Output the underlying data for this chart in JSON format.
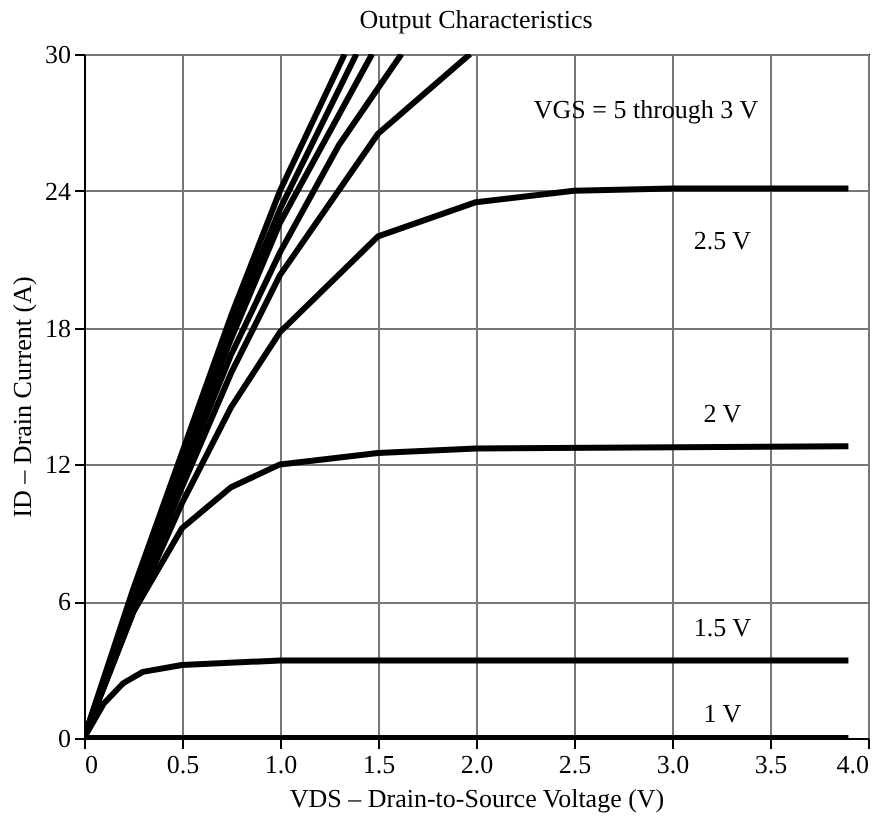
{
  "chart_data": {
    "type": "line",
    "title": "Output Characteristics",
    "xlabel": "VDS – Drain-to-Source Voltage (V)",
    "ylabel": "ID – Drain Current (A)",
    "xlim": [
      0,
      4
    ],
    "ylim": [
      0,
      30
    ],
    "xticks": [
      0,
      0.5,
      {
        "value": 1,
        "label": "1.0"
      },
      1.5,
      {
        "value": 2,
        "label": "2.0"
      },
      2.5,
      {
        "value": 3,
        "label": "3.0"
      },
      3.5,
      {
        "value": 4,
        "label": "4.0"
      }
    ],
    "yticks": [
      0,
      6,
      12,
      18,
      24,
      30
    ],
    "grid": true,
    "legend": false,
    "marker": "none",
    "line_style": "solid",
    "series": [
      {
        "color": "#000000",
        "x": [
          0,
          0.25,
          0.5,
          0.75,
          1.0,
          1.33
        ],
        "values": [
          0,
          6.5,
          12.5,
          18.5,
          24,
          30
        ]
      },
      {
        "color": "#000000",
        "x": [
          0,
          0.25,
          0.5,
          0.75,
          1.0,
          1.39
        ],
        "values": [
          0,
          6.3,
          12.2,
          18,
          23.2,
          30
        ]
      },
      {
        "color": "#000000",
        "x": [
          0,
          0.25,
          0.5,
          0.75,
          1.0,
          1.47
        ],
        "values": [
          0,
          6.2,
          12,
          17.5,
          22.6,
          30
        ]
      },
      {
        "color": "#000000",
        "x": [
          0,
          0.25,
          0.5,
          0.75,
          1.0,
          1.3,
          1.62
        ],
        "values": [
          0,
          6,
          11.5,
          16.8,
          21.3,
          26,
          30
        ]
      },
      {
        "color": "#000000",
        "x": [
          0,
          0.25,
          0.5,
          0.75,
          1.0,
          1.5,
          1.97
        ],
        "values": [
          0,
          5.8,
          11,
          16,
          20.3,
          26.5,
          30
        ]
      },
      {
        "name": "2.5 V",
        "color": "#000000",
        "x": [
          0,
          0.25,
          0.5,
          0.75,
          1.0,
          1.5,
          2.0,
          2.5,
          3.0,
          3.9
        ],
        "values": [
          0,
          5.5,
          10.3,
          14.5,
          17.8,
          22,
          23.5,
          24,
          24.1,
          24.1
        ]
      },
      {
        "name": "2 V",
        "color": "#000000",
        "x": [
          0,
          0.25,
          0.5,
          0.75,
          1.0,
          1.5,
          2.0,
          3.9
        ],
        "values": [
          0,
          5.5,
          9.2,
          11,
          12,
          12.5,
          12.7,
          12.8
        ]
      },
      {
        "name": "1.5 V",
        "color": "#000000",
        "x": [
          0,
          0.1,
          0.2,
          0.3,
          0.5,
          1.0,
          2.0,
          3.9
        ],
        "values": [
          0,
          1.5,
          2.4,
          2.9,
          3.2,
          3.4,
          3.4,
          3.4
        ]
      },
      {
        "name": "1 V",
        "color": "#000000",
        "x": [
          0,
          3.9
        ],
        "values": [
          0,
          0
        ]
      }
    ],
    "annotations": [
      "VGS = 5 through 3 V"
    ]
  }
}
